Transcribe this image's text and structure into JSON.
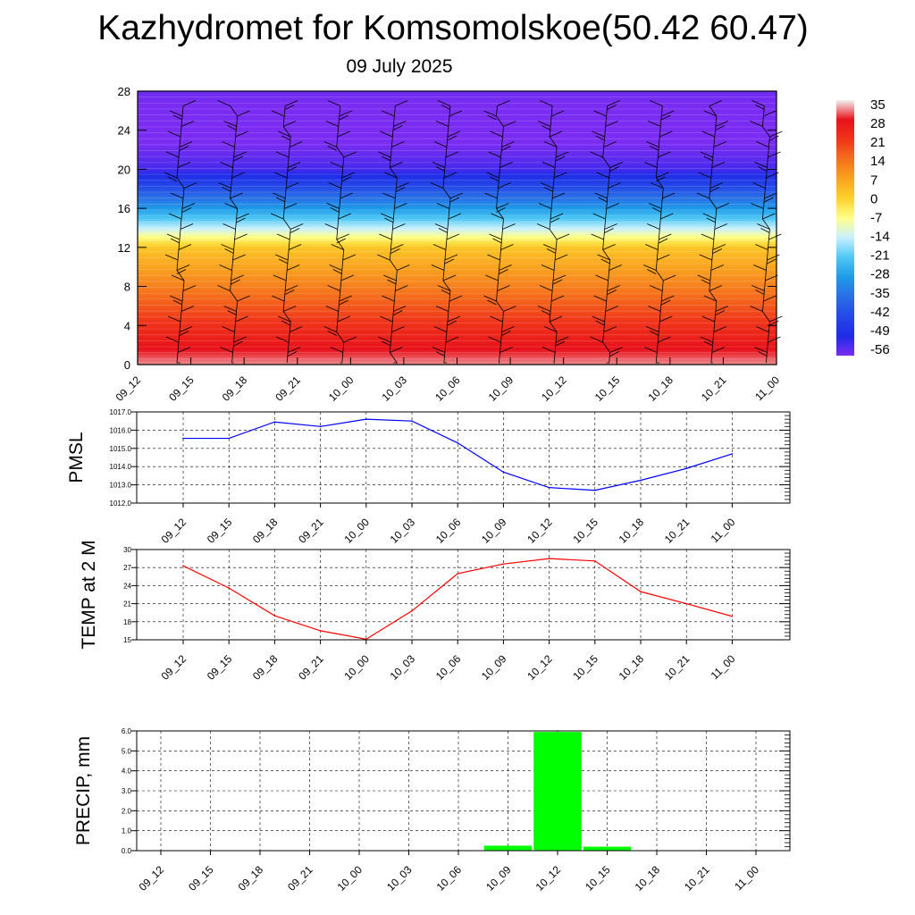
{
  "title": "Kazhydromet for Komsomolskoe(50.42 60.47)",
  "subtitle": "09 July 2025",
  "chart_data": [
    {
      "type": "heatmap",
      "name": "temperature-cross-section",
      "x_labels": [
        "09_12",
        "09_15",
        "09_18",
        "09_21",
        "10_00",
        "10_03",
        "10_06",
        "10_09",
        "10_12",
        "10_15",
        "10_18",
        "10_21",
        "11_00"
      ],
      "ylim": [
        0,
        28
      ],
      "y_ticks": [
        0,
        4,
        8,
        12,
        16,
        20,
        24,
        28
      ],
      "colorbar_labels": [
        "35",
        "28",
        "21",
        "14",
        "7",
        "0",
        "-7",
        "-14",
        "-21",
        "-28",
        "-35",
        "-42",
        "-49",
        "-56"
      ],
      "colorbar_ramp": [
        "#f2f2f2",
        "#e8111a",
        "#f0341a",
        "#f5701c",
        "#f9a31f",
        "#fdd12a",
        "#ffff8c",
        "#c8f0ff",
        "#4fc8f5",
        "#1e9be8",
        "#2a6ee6",
        "#2448e8",
        "#1f2be8",
        "#7a2cf2"
      ],
      "profile": [
        {
          "h": 0,
          "t": 32
        },
        {
          "h": 4,
          "t": 22
        },
        {
          "h": 8,
          "t": 12
        },
        {
          "h": 12,
          "t": 2
        },
        {
          "h": 13,
          "t": -6
        },
        {
          "h": 14,
          "t": -14
        },
        {
          "h": 16,
          "t": -28
        },
        {
          "h": 18,
          "t": -40
        },
        {
          "h": 20,
          "t": -52
        },
        {
          "h": 24,
          "t": -58
        },
        {
          "h": 28,
          "t": -55
        }
      ]
    },
    {
      "type": "line",
      "name": "pmsl",
      "ylabel": "PMSL",
      "x_labels": [
        "09_12",
        "09_15",
        "09_18",
        "09_21",
        "10_00",
        "10_03",
        "10_06",
        "10_09",
        "10_12",
        "10_15",
        "10_18",
        "10_21",
        "11_00"
      ],
      "ylim": [
        1012.0,
        1017.0
      ],
      "y_ticks": [
        "1012.0",
        "1013.0",
        "1014.0",
        "1015.0",
        "1016.0",
        "1017.0"
      ],
      "values": [
        1015.55,
        1015.55,
        1016.45,
        1016.2,
        1016.6,
        1016.5,
        1015.3,
        1013.7,
        1012.85,
        1012.7,
        1013.25,
        1013.9,
        1014.7
      ],
      "color": "#0000ff"
    },
    {
      "type": "line",
      "name": "temp2m",
      "ylabel": "TEMP at 2 M",
      "x_labels": [
        "09_12",
        "09_15",
        "09_18",
        "09_21",
        "10_00",
        "10_03",
        "10_06",
        "10_09",
        "10_12",
        "10_15",
        "10_18",
        "10_21",
        "11_00"
      ],
      "ylim": [
        15,
        30
      ],
      "y_ticks": [
        "15",
        "18",
        "21",
        "24",
        "27",
        "30"
      ],
      "values": [
        27.3,
        23.6,
        19.0,
        16.5,
        15.1,
        19.8,
        26.0,
        27.6,
        28.5,
        28.1,
        23.0,
        21.0,
        18.9
      ],
      "color": "#ff0000"
    },
    {
      "type": "bar",
      "name": "precip",
      "ylabel": "PRECIP, mm",
      "x_labels": [
        "09_12",
        "09_15",
        "09_18",
        "09_21",
        "10_00",
        "10_03",
        "10_06",
        "10_09",
        "10_12",
        "10_15",
        "10_18",
        "10_21",
        "11_00"
      ],
      "ylim": [
        0,
        6.0
      ],
      "y_ticks": [
        "0.0",
        "1.0",
        "2.0",
        "3.0",
        "4.0",
        "5.0",
        "6.0"
      ],
      "values": [
        0,
        0,
        0,
        0,
        0,
        0,
        0,
        0.25,
        5.95,
        0.2,
        0,
        0,
        0
      ],
      "color": "#00ff00"
    }
  ]
}
